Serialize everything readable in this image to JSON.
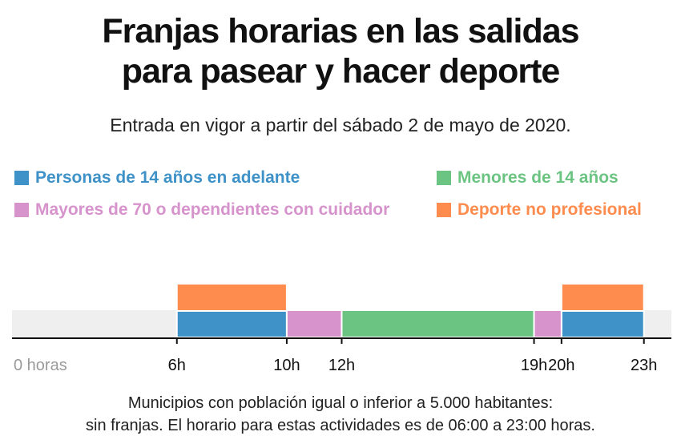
{
  "chart_data": {
    "type": "bar",
    "title_lines": [
      "Franjas horarias en las salidas",
      "para pasear y hacer deporte"
    ],
    "subtitle": "Entrada en vigor a partir del sábado 2 de mayo de 2020.",
    "xlim": [
      0,
      24
    ],
    "ticks": [
      {
        "value": 0,
        "label": "0 horas"
      },
      {
        "value": 6,
        "label": "6h"
      },
      {
        "value": 10,
        "label": "10h"
      },
      {
        "value": 12,
        "label": "12h"
      },
      {
        "value": 19,
        "label": "19h"
      },
      {
        "value": 20,
        "label": "20h"
      },
      {
        "value": 23,
        "label": "23h"
      }
    ],
    "series": [
      {
        "name": "Personas de 14 años en adelante",
        "color": "#3f92c8",
        "row": 0,
        "intervals": [
          [
            6,
            10
          ],
          [
            20,
            23
          ]
        ]
      },
      {
        "name": "Menores de 14 años",
        "color": "#6cc482",
        "row": 0,
        "intervals": [
          [
            12,
            19
          ]
        ]
      },
      {
        "name": "Mayores de 70 o dependientes con cuidador",
        "color": "#d693cc",
        "row": 0,
        "intervals": [
          [
            10,
            12
          ],
          [
            19,
            20
          ]
        ]
      },
      {
        "name": "Deporte no profesional",
        "color": "#fd8c4e",
        "row": 1,
        "intervals": [
          [
            6,
            10
          ],
          [
            20,
            23
          ]
        ]
      }
    ],
    "background_band": "#efefef",
    "footnote_lines": [
      "Municipios con población igual o inferior a 5.000 habitantes:",
      "sin franjas. El horario para estas actividades es de 06:00 a 23:00 horas."
    ]
  }
}
